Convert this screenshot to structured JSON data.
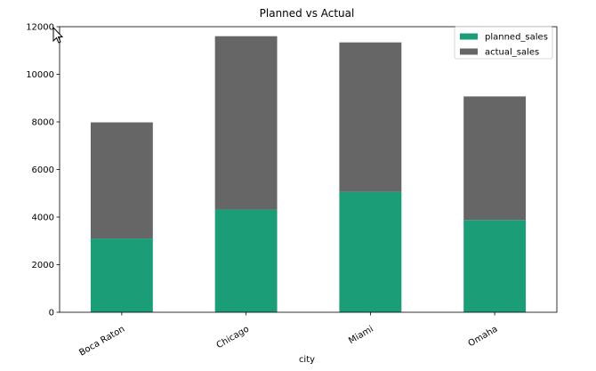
{
  "chart_data": {
    "type": "bar",
    "stacked": true,
    "title": "Planned vs Actual",
    "xlabel": "city",
    "ylabel": "",
    "categories": [
      "Boca Raton",
      "Chicago",
      "Miami",
      "Omaha"
    ],
    "series": [
      {
        "name": "planned_sales",
        "values": [
          3100,
          4320,
          5060,
          3880
        ],
        "color": "#1b9e77"
      },
      {
        "name": "actual_sales",
        "values": [
          4880,
          7280,
          6280,
          5190
        ],
        "color": "#666666"
      }
    ],
    "ylim": [
      0,
      12000
    ],
    "yticks": [
      0,
      2000,
      4000,
      6000,
      8000,
      10000,
      12000
    ],
    "grid": false,
    "legend_position": "top-right",
    "xtick_rotation": 30
  }
}
